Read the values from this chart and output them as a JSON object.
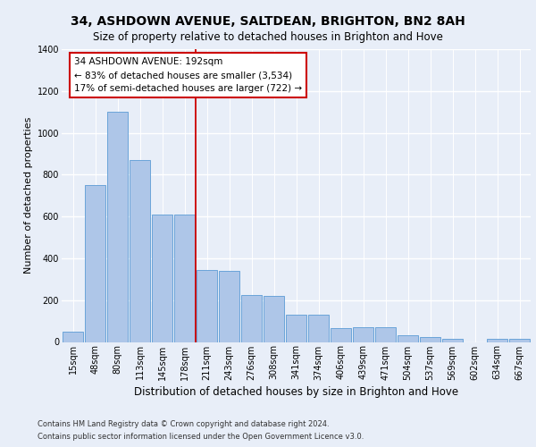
{
  "title1": "34, ASHDOWN AVENUE, SALTDEAN, BRIGHTON, BN2 8AH",
  "title2": "Size of property relative to detached houses in Brighton and Hove",
  "xlabel": "Distribution of detached houses by size in Brighton and Hove",
  "ylabel": "Number of detached properties",
  "footer1": "Contains HM Land Registry data © Crown copyright and database right 2024.",
  "footer2": "Contains public sector information licensed under the Open Government Licence v3.0.",
  "categories": [
    "15sqm",
    "48sqm",
    "80sqm",
    "113sqm",
    "145sqm",
    "178sqm",
    "211sqm",
    "243sqm",
    "276sqm",
    "308sqm",
    "341sqm",
    "374sqm",
    "406sqm",
    "439sqm",
    "471sqm",
    "504sqm",
    "537sqm",
    "569sqm",
    "602sqm",
    "634sqm",
    "667sqm"
  ],
  "values": [
    50,
    750,
    1100,
    870,
    610,
    610,
    345,
    340,
    225,
    220,
    130,
    130,
    65,
    70,
    70,
    30,
    25,
    15,
    0,
    15,
    15
  ],
  "bar_color": "#aec6e8",
  "bar_edge_color": "#5b9bd5",
  "annotation_line1": "34 ASHDOWN AVENUE: 192sqm",
  "annotation_line2": "← 83% of detached houses are smaller (3,534)",
  "annotation_line3": "17% of semi-detached houses are larger (722) →",
  "annotation_box_edge": "#cc0000",
  "vline_color": "#cc0000",
  "vline_x": 5.5,
  "ylim": [
    0,
    1400
  ],
  "yticks": [
    0,
    200,
    400,
    600,
    800,
    1000,
    1200,
    1400
  ],
  "bg_color": "#e8eef8",
  "grid_color": "#ffffff",
  "title1_fontsize": 10,
  "title2_fontsize": 8.5,
  "xlabel_fontsize": 8.5,
  "ylabel_fontsize": 8,
  "tick_fontsize": 7,
  "ann_fontsize": 7.5,
  "footer_fontsize": 6
}
